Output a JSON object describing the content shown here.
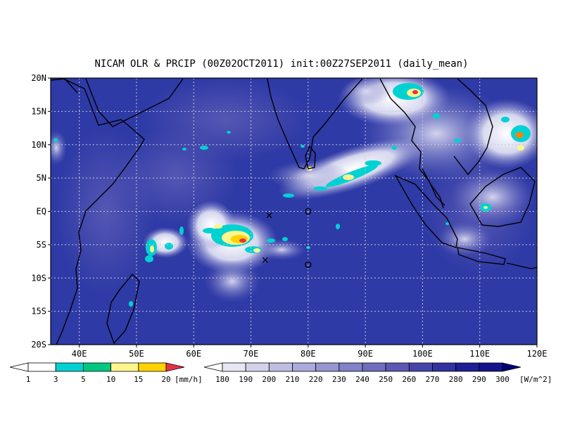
{
  "figure": {
    "title": "NICAM OLR & PRCIP (00Z02OCT2011) init:00Z27SEP2011 (daily_mean)"
  },
  "map": {
    "lon_range": [
      35,
      120
    ],
    "lat_range": [
      -20,
      20
    ],
    "lon_ticks": [
      {
        "value": 40,
        "label": "40E"
      },
      {
        "value": 50,
        "label": "50E"
      },
      {
        "value": 60,
        "label": "60E"
      },
      {
        "value": 70,
        "label": "70E"
      },
      {
        "value": 80,
        "label": "80E"
      },
      {
        "value": 90,
        "label": "90E"
      },
      {
        "value": 100,
        "label": "100E"
      },
      {
        "value": 110,
        "label": "110E"
      },
      {
        "value": 120,
        "label": "120E"
      }
    ],
    "lat_ticks": [
      {
        "value": 20,
        "label": "20N"
      },
      {
        "value": 15,
        "label": "15N"
      },
      {
        "value": 10,
        "label": "10N"
      },
      {
        "value": 5,
        "label": "5N"
      },
      {
        "value": 0,
        "label": "EQ"
      },
      {
        "value": -5,
        "label": "5S"
      },
      {
        "value": -10,
        "label": "10S"
      },
      {
        "value": -15,
        "label": "15S"
      },
      {
        "value": -20,
        "label": "20S"
      }
    ],
    "grid": true,
    "ocean_color": "#2e3aa6",
    "markers": [
      {
        "type": "x",
        "lon": 73.2,
        "lat": -0.6
      },
      {
        "type": "x",
        "lon": 72.5,
        "lat": -7.3
      },
      {
        "type": "o",
        "lon": 80,
        "lat": 0
      },
      {
        "type": "o",
        "lon": 80,
        "lat": -8
      }
    ],
    "coast_color": "#000000"
  },
  "precip_colorbar": {
    "unit": "[mm/h]",
    "ticks": [
      "1",
      "3",
      "5",
      "10",
      "15",
      "20"
    ],
    "colors": [
      "#00d2d2",
      "#00c882",
      "#fff58c",
      "#ffd200",
      "#ff8200",
      "#e63246"
    ]
  },
  "olr_colorbar": {
    "unit": "[W/m^2]",
    "ticks": [
      "180",
      "190",
      "200",
      "210",
      "220",
      "230",
      "240",
      "250",
      "260",
      "270",
      "280",
      "290",
      "300"
    ],
    "colors": [
      "#e6e6f5",
      "#d2d2ec",
      "#bebee3",
      "#aaaadc",
      "#9696d2",
      "#8282c8",
      "#6e6ebe",
      "#5a5ab4",
      "#4646aa",
      "#3232a0",
      "#1e1e96",
      "#14148c",
      "#0a0a82",
      "#000078"
    ]
  }
}
